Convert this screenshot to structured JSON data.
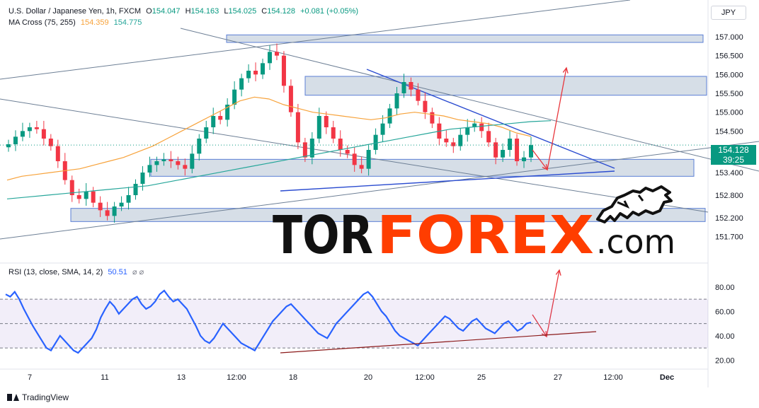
{
  "header": {
    "symbol": "U.S. Dollar / Japanese Yen, 1h, FXCM",
    "open_label": "O",
    "open": "154.047",
    "high_label": "H",
    "high": "154.163",
    "low_label": "L",
    "low": "154.025",
    "close_label": "C",
    "close": "154.128",
    "change": "+0.081 (+0.05%)",
    "ma_title": "MA Cross (75, 255)",
    "ma75_value": "154.359",
    "ma255_value": "154.775",
    "rsi_title": "RSI (13, close, SMA, 14, 2)",
    "rsi_value": "50.51",
    "hide_glyph": "⌀ ⌀"
  },
  "currency_button": "JPY",
  "current_price": {
    "price": "154.128",
    "countdown": "39:25"
  },
  "watermark": {
    "part1": "TOR",
    "part2": "FOREX",
    "part3": ".com"
  },
  "footer": {
    "brand": "TradingView"
  },
  "colors": {
    "up": "#089981",
    "down": "#f23645",
    "ma75": "#f7a23a",
    "ma255": "#26a69a",
    "rsi": "#2962ff",
    "zone": "#b4c3d4",
    "trend": "#2b4cd0",
    "forecast": "#e8363c",
    "rsi_support": "#8b1a1a",
    "watermark_dark": "#111111",
    "watermark_accent": "#ff3d00"
  },
  "chart_data": [
    {
      "type": "candlestick",
      "title": "U.S. Dollar / Japanese Yen, 1h, FXCM",
      "x_ticks": [
        "7",
        "11",
        "13",
        "12:00",
        "18",
        "20",
        "12:00",
        "25",
        "27",
        "12:00",
        "Dec"
      ],
      "y_ticks": [
        157.0,
        156.5,
        156.0,
        155.5,
        155.0,
        154.5,
        153.4,
        152.8,
        152.2,
        151.7
      ],
      "ylim": [
        151.45,
        157.3
      ],
      "close_series": [
        154.15,
        154.35,
        154.5,
        154.6,
        154.55,
        154.3,
        154.1,
        153.7,
        153.2,
        152.8,
        152.7,
        152.9,
        152.6,
        152.4,
        152.25,
        152.5,
        152.6,
        152.8,
        153.1,
        153.4,
        153.6,
        153.7,
        153.75,
        153.7,
        153.6,
        153.5,
        153.9,
        154.3,
        154.6,
        154.9,
        154.8,
        155.2,
        155.6,
        155.9,
        156.1,
        156.0,
        156.3,
        156.6,
        156.5,
        155.7,
        155.0,
        154.2,
        153.8,
        154.3,
        154.9,
        154.6,
        154.3,
        154.0,
        153.9,
        153.6,
        153.5,
        154.0,
        154.4,
        154.7,
        155.1,
        155.5,
        155.8,
        155.6,
        155.3,
        155.0,
        154.7,
        154.3,
        154.2,
        154.1,
        154.4,
        154.6,
        154.7,
        154.5,
        154.2,
        153.8,
        154.0,
        154.3,
        153.7,
        153.8,
        154.128
      ],
      "ma75": [
        153.2,
        153.3,
        153.35,
        153.4,
        153.45,
        153.5,
        153.6,
        153.7,
        153.8,
        153.95,
        154.1,
        154.3,
        154.5,
        154.7,
        154.9,
        155.1,
        155.3,
        155.4,
        155.35,
        155.2,
        155.1,
        155.0,
        154.95,
        154.9,
        154.85,
        154.8,
        154.85,
        154.95,
        155.0,
        154.95,
        154.9,
        154.8,
        154.75,
        154.7,
        154.6,
        154.45,
        154.359
      ],
      "ma255": [
        152.7,
        152.75,
        152.8,
        152.85,
        152.9,
        152.95,
        153.0,
        153.05,
        153.15,
        153.25,
        153.35,
        153.45,
        153.55,
        153.65,
        153.75,
        153.85,
        153.95,
        154.05,
        154.15,
        154.25,
        154.35,
        154.45,
        154.55,
        154.6,
        154.65,
        154.7,
        154.75,
        154.775
      ],
      "zones": [
        [
          156.85,
          157.05
        ],
        [
          155.45,
          155.95
        ],
        [
          153.3,
          153.75
        ],
        [
          152.1,
          152.45
        ]
      ],
      "current_price": 154.128
    },
    {
      "type": "line",
      "title": "RSI (13, close, SMA, 14, 2)",
      "y_ticks": [
        80.0,
        60.0,
        40.0,
        20.0
      ],
      "ylim": [
        15,
        88
      ],
      "bands": [
        30,
        50,
        70
      ],
      "last_value": 50.51,
      "values": [
        74,
        72,
        76,
        70,
        62,
        55,
        48,
        42,
        36,
        30,
        28,
        34,
        40,
        36,
        32,
        28,
        26,
        30,
        34,
        38,
        45,
        55,
        62,
        68,
        64,
        58,
        62,
        66,
        70,
        72,
        66,
        62,
        64,
        68,
        74,
        77,
        72,
        68,
        70,
        66,
        62,
        55,
        48,
        40,
        36,
        34,
        38,
        44,
        50,
        46,
        42,
        38,
        34,
        32,
        30,
        28,
        34,
        40,
        46,
        52,
        56,
        60,
        64,
        66,
        62,
        58,
        54,
        50,
        46,
        42,
        40,
        38,
        44,
        50,
        54,
        58,
        62,
        66,
        70,
        74,
        76,
        72,
        66,
        60,
        56,
        50,
        44,
        40,
        38,
        36,
        34,
        32,
        36,
        40,
        44,
        48,
        52,
        56,
        54,
        50,
        46,
        44,
        48,
        52,
        54,
        50,
        46,
        44,
        42,
        46,
        50,
        52,
        48,
        44,
        46,
        50,
        51
      ]
    }
  ]
}
